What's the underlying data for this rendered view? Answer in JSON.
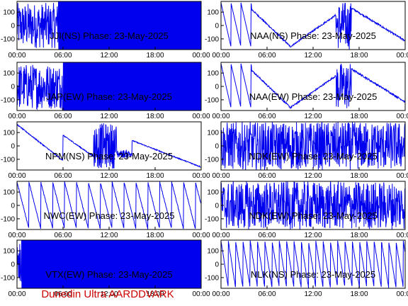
{
  "footer": {
    "text": "Dunedin Ultra AARDDVARK",
    "color": "#cc0000"
  },
  "colors": {
    "trace": "#0000ee",
    "axis": "#000000",
    "background": "#ffffff"
  },
  "chart_data": [
    {
      "title": "JJI(NS) Phase: 23-May-2025",
      "type": "line",
      "style": "solid",
      "solid_from": 5.4,
      "x_ticks": [
        "00:00",
        "06:00",
        "12:00",
        "18:00",
        "00:00"
      ],
      "y_ticks": [
        100,
        0,
        -100
      ],
      "xlim": [
        0,
        24
      ],
      "ylim": [
        -180,
        180
      ]
    },
    {
      "title": "NAA(NS) Phase: 23-May-2025",
      "type": "line",
      "style": "ramps",
      "x_ticks": [
        "00:00",
        "06:00",
        "12:00",
        "18:00",
        "00:00"
      ],
      "y_ticks": [
        100,
        0,
        -100
      ],
      "xlim": [
        0,
        24
      ],
      "ylim": [
        -180,
        180
      ]
    },
    {
      "title": "JAP(EW) Phase: 23-May-2025",
      "type": "line",
      "style": "solid",
      "solid_from": 6.0,
      "x_ticks": [
        "00:00",
        "06:00",
        "12:00",
        "18:00",
        "00:00"
      ],
      "y_ticks": [
        100,
        0,
        -100
      ],
      "xlim": [
        0,
        24
      ],
      "ylim": [
        -180,
        180
      ]
    },
    {
      "title": "NAA(EW) Phase: 23-May-2025",
      "type": "line",
      "style": "ramps",
      "x_ticks": [
        "00:00",
        "06:00",
        "12:00",
        "18:00",
        "00:00"
      ],
      "y_ticks": [
        100,
        0,
        -100
      ],
      "xlim": [
        0,
        24
      ],
      "ylim": [
        -180,
        180
      ]
    },
    {
      "title": "NPM(NS) Phase: 23-May-2025",
      "type": "line",
      "style": "decline",
      "x_ticks": [
        "00:00",
        "06:00",
        "12:00",
        "18:00",
        "00:00"
      ],
      "y_ticks": [
        100,
        0,
        -100
      ],
      "xlim": [
        0,
        24
      ],
      "ylim": [
        -180,
        180
      ]
    },
    {
      "title": "NDK(EW) Phase: 23-May-2025",
      "type": "line",
      "style": "noise",
      "x_ticks": [
        "00:00",
        "06:00",
        "12:00",
        "18:00",
        "00:00"
      ],
      "y_ticks": [
        100,
        0,
        -100
      ],
      "xlim": [
        0,
        24
      ],
      "ylim": [
        -180,
        180
      ]
    },
    {
      "title": "NWC(EW) Phase: 23-May-2025",
      "type": "line",
      "style": "sawtooth",
      "x_ticks": [
        "00:00",
        "06:00",
        "12:00",
        "18:00",
        "00:00"
      ],
      "y_ticks": [
        100,
        0,
        -100
      ],
      "xlim": [
        0,
        24
      ],
      "ylim": [
        -180,
        180
      ]
    },
    {
      "title": "NDK(EW) Phase: 23-May-2025",
      "type": "line",
      "style": "noise",
      "x_ticks": [
        "00:00",
        "06:00",
        "12:00",
        "18:00",
        "00:00"
      ],
      "y_ticks": [
        100,
        0,
        -100
      ],
      "xlim": [
        0,
        24
      ],
      "ylim": [
        -180,
        180
      ]
    },
    {
      "title": "VTX(EW) Phase: 23-May-2025",
      "type": "line",
      "style": "solid",
      "solid_from": 0.6,
      "x_ticks": [
        "00:00",
        "06:00",
        "12:00",
        "18:00",
        "00:00"
      ],
      "y_ticks": [
        100,
        0,
        -100
      ],
      "xlim": [
        0,
        24
      ],
      "ylim": [
        -180,
        180
      ]
    },
    {
      "title": "NLK(NS) Phase: 23-May-2025",
      "type": "line",
      "style": "fastsaw",
      "x_ticks": [
        "00:00",
        "06:00",
        "12:00",
        "18:00",
        "00:00"
      ],
      "y_ticks": [
        100,
        0,
        -100
      ],
      "xlim": [
        0,
        24
      ],
      "ylim": [
        -180,
        180
      ]
    }
  ]
}
